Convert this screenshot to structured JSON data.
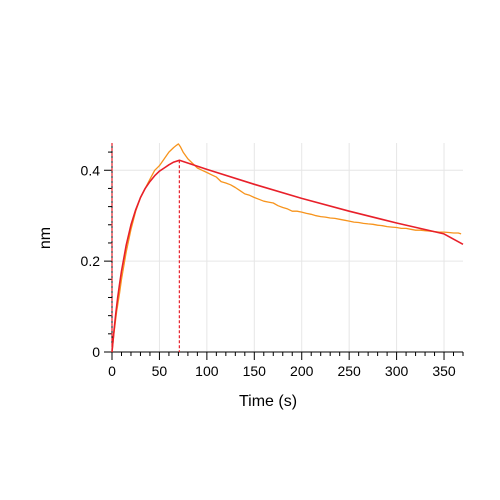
{
  "chart_data": {
    "type": "line",
    "title": "",
    "xlabel": "Time (s)",
    "ylabel": "nm",
    "xlim": [
      0,
      370
    ],
    "ylim": [
      0,
      0.46
    ],
    "x_ticks": [
      0,
      50,
      100,
      150,
      200,
      250,
      300,
      350
    ],
    "y_ticks": [
      0,
      0.2,
      0.4
    ],
    "grid": true,
    "legend": "none",
    "association_end": 71,
    "series": [
      {
        "role": "data",
        "color": "#f7941d",
        "points": [
          [
            0,
            0.0
          ],
          [
            2,
            0.04
          ],
          [
            5,
            0.09
          ],
          [
            8,
            0.13
          ],
          [
            10,
            0.16
          ],
          [
            15,
            0.22
          ],
          [
            20,
            0.27
          ],
          [
            25,
            0.31
          ],
          [
            30,
            0.34
          ],
          [
            35,
            0.36
          ],
          [
            40,
            0.38
          ],
          [
            45,
            0.4
          ],
          [
            50,
            0.41
          ],
          [
            55,
            0.425
          ],
          [
            60,
            0.44
          ],
          [
            65,
            0.45
          ],
          [
            68,
            0.455
          ],
          [
            70,
            0.458
          ],
          [
            72,
            0.452
          ],
          [
            75,
            0.44
          ],
          [
            80,
            0.425
          ],
          [
            85,
            0.415
          ],
          [
            90,
            0.405
          ],
          [
            95,
            0.4
          ],
          [
            100,
            0.395
          ],
          [
            105,
            0.39
          ],
          [
            110,
            0.385
          ],
          [
            115,
            0.375
          ],
          [
            120,
            0.372
          ],
          [
            125,
            0.368
          ],
          [
            130,
            0.362
          ],
          [
            135,
            0.355
          ],
          [
            140,
            0.348
          ],
          [
            145,
            0.345
          ],
          [
            150,
            0.34
          ],
          [
            155,
            0.336
          ],
          [
            160,
            0.332
          ],
          [
            165,
            0.33
          ],
          [
            170,
            0.328
          ],
          [
            175,
            0.322
          ],
          [
            180,
            0.318
          ],
          [
            185,
            0.315
          ],
          [
            190,
            0.31
          ],
          [
            195,
            0.31
          ],
          [
            200,
            0.308
          ],
          [
            205,
            0.305
          ],
          [
            210,
            0.303
          ],
          [
            215,
            0.3
          ],
          [
            220,
            0.298
          ],
          [
            225,
            0.297
          ],
          [
            230,
            0.295
          ],
          [
            235,
            0.294
          ],
          [
            240,
            0.292
          ],
          [
            245,
            0.29
          ],
          [
            250,
            0.288
          ],
          [
            255,
            0.286
          ],
          [
            260,
            0.285
          ],
          [
            265,
            0.283
          ],
          [
            270,
            0.282
          ],
          [
            275,
            0.281
          ],
          [
            280,
            0.279
          ],
          [
            285,
            0.278
          ],
          [
            290,
            0.276
          ],
          [
            295,
            0.275
          ],
          [
            300,
            0.274
          ],
          [
            305,
            0.272
          ],
          [
            310,
            0.272
          ],
          [
            315,
            0.27
          ],
          [
            320,
            0.268
          ],
          [
            325,
            0.268
          ],
          [
            330,
            0.267
          ],
          [
            335,
            0.266
          ],
          [
            340,
            0.265
          ],
          [
            345,
            0.264
          ],
          [
            350,
            0.264
          ],
          [
            355,
            0.263
          ],
          [
            360,
            0.262
          ],
          [
            365,
            0.262
          ],
          [
            368,
            0.26
          ]
        ]
      },
      {
        "role": "fit",
        "color": "#e8202a",
        "points": [
          [
            0,
            0.0
          ],
          [
            2,
            0.045
          ],
          [
            4,
            0.085
          ],
          [
            6,
            0.12
          ],
          [
            8,
            0.15
          ],
          [
            10,
            0.178
          ],
          [
            15,
            0.235
          ],
          [
            20,
            0.28
          ],
          [
            25,
            0.313
          ],
          [
            30,
            0.34
          ],
          [
            35,
            0.36
          ],
          [
            40,
            0.375
          ],
          [
            45,
            0.388
          ],
          [
            50,
            0.398
          ],
          [
            55,
            0.405
          ],
          [
            60,
            0.412
          ],
          [
            65,
            0.418
          ],
          [
            71,
            0.422
          ],
          [
            100,
            0.402
          ],
          [
            150,
            0.369
          ],
          [
            200,
            0.338
          ],
          [
            250,
            0.31
          ],
          [
            300,
            0.284
          ],
          [
            350,
            0.26
          ],
          [
            370,
            0.237
          ]
        ]
      }
    ]
  }
}
